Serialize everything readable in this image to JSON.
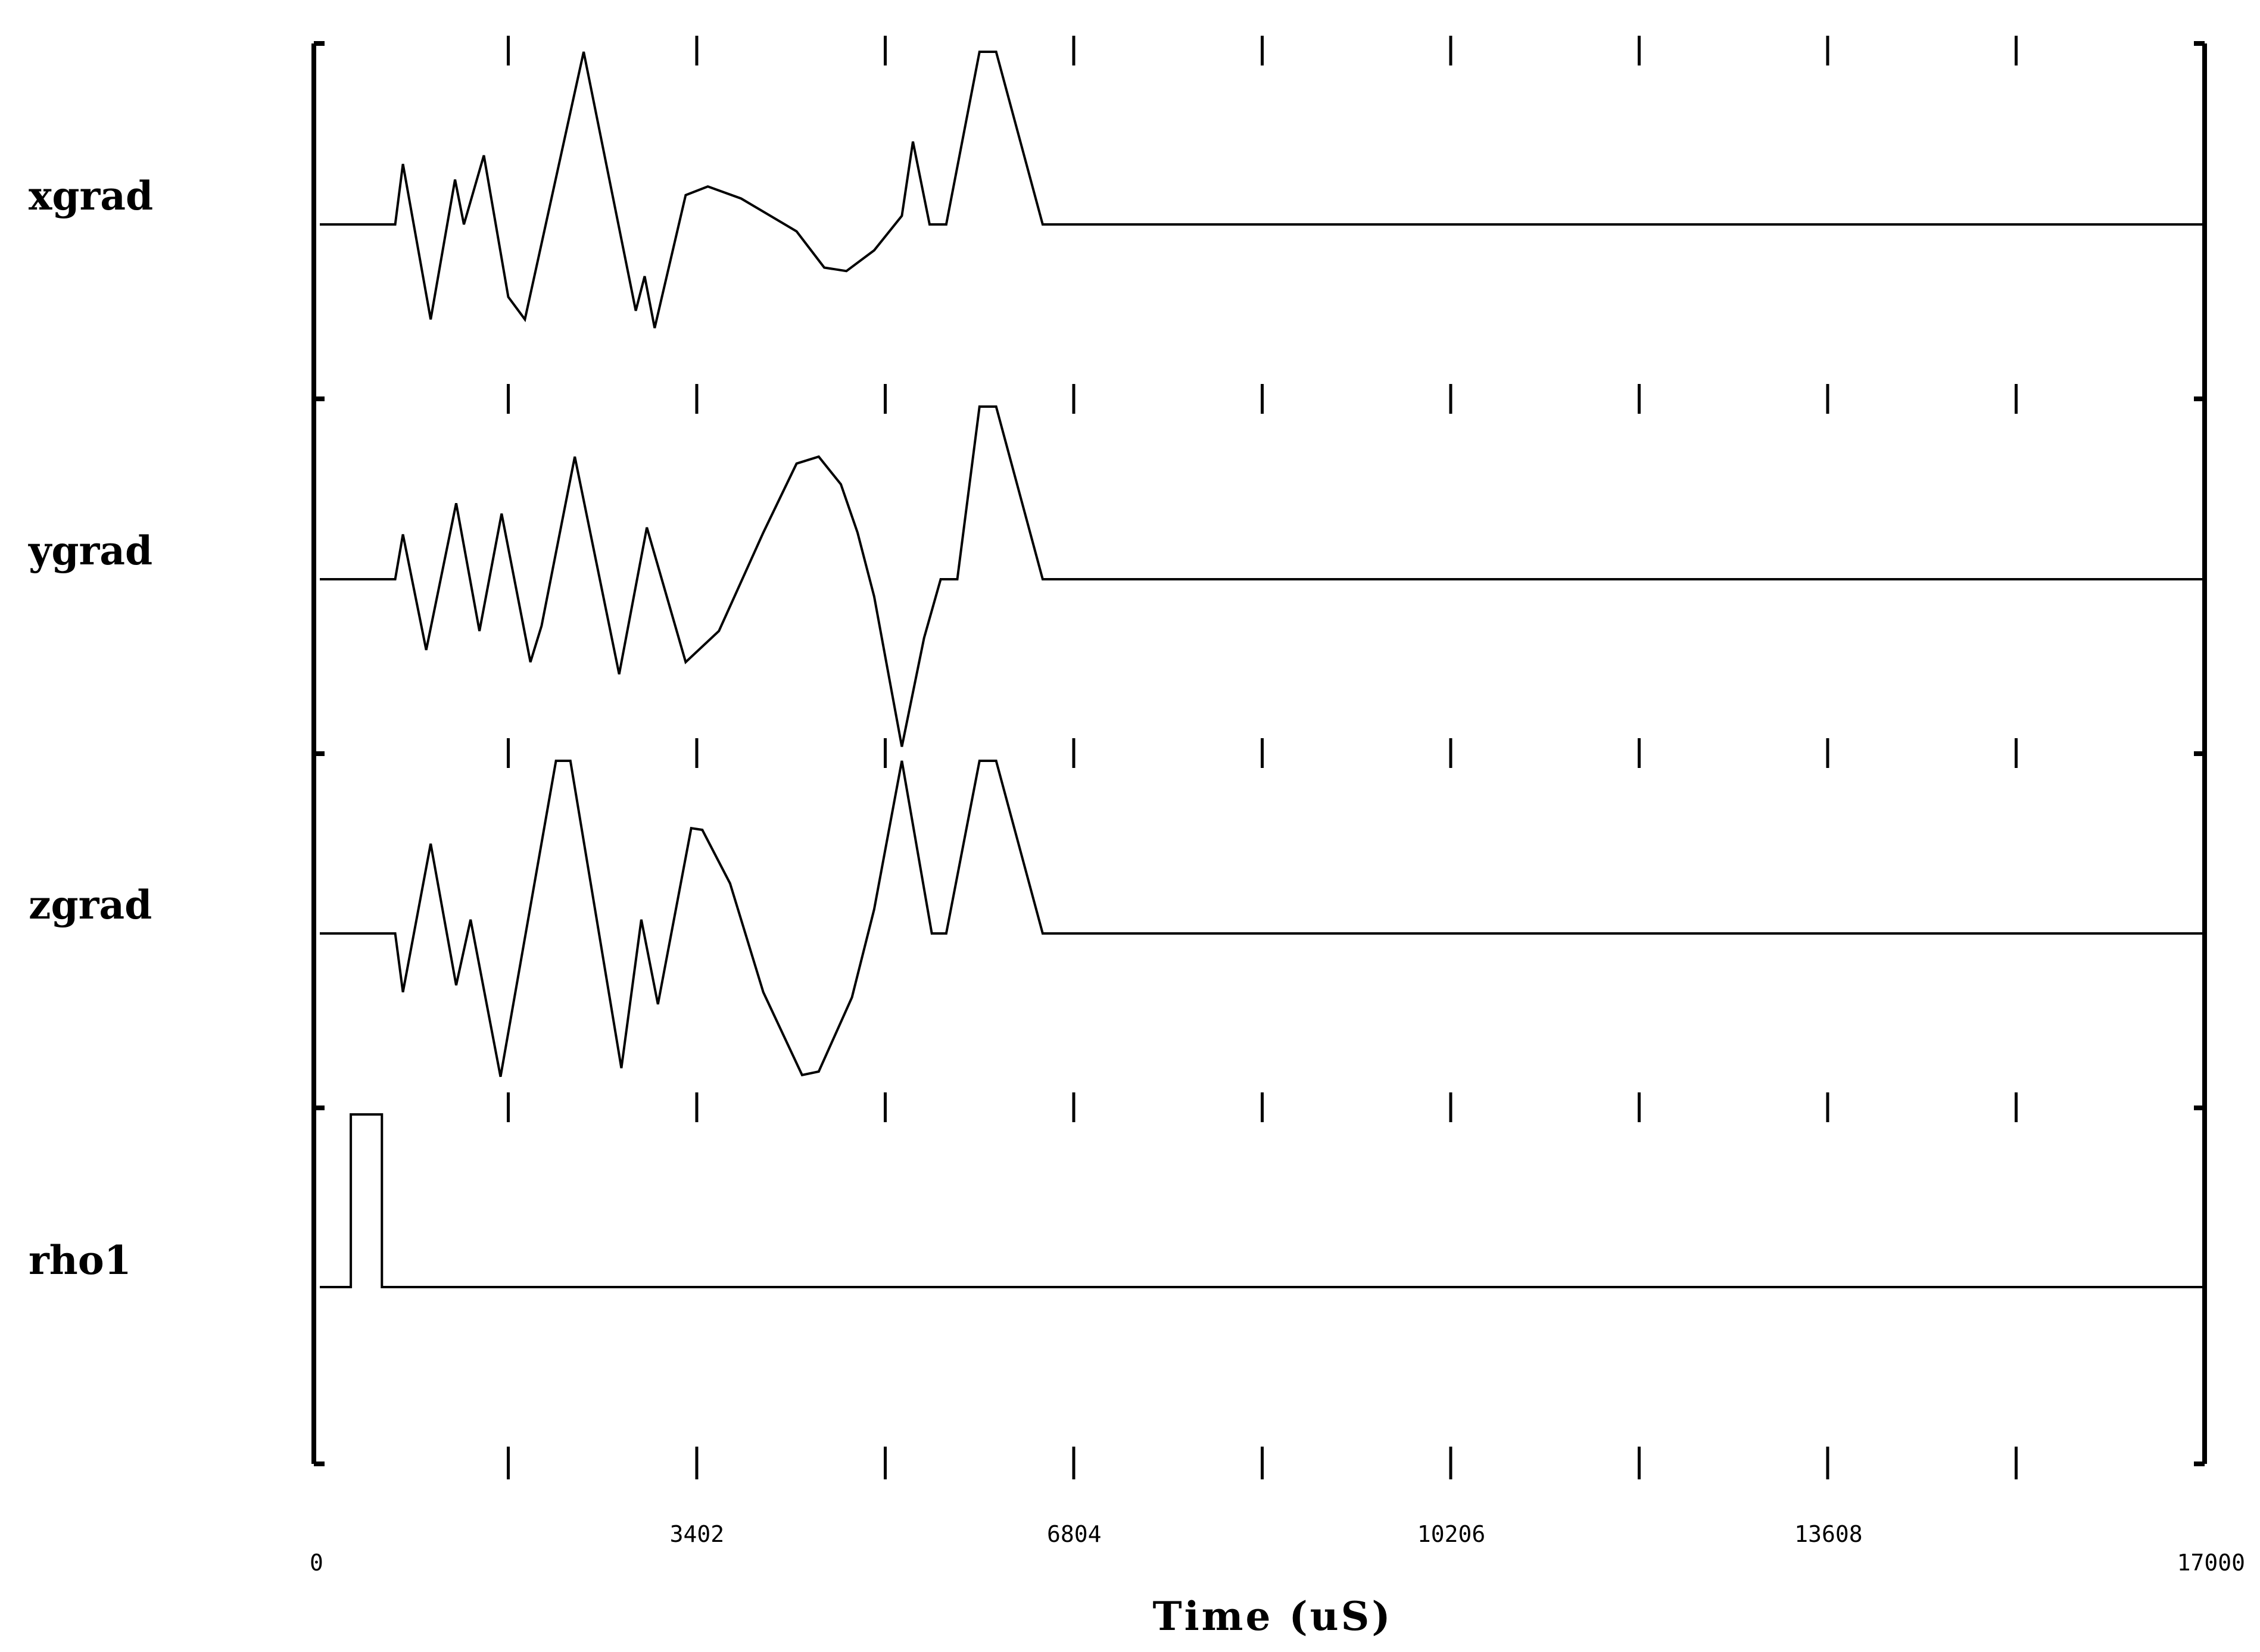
{
  "chart_data": {
    "type": "line",
    "xlabel": "Time (uS)",
    "xlim": [
      0,
      17000
    ],
    "x_tick_labels": [
      "0",
      "3402",
      "6804",
      "10206",
      "13608",
      "17000"
    ],
    "x_tick_values": [
      0,
      3402,
      6804,
      10206,
      13608,
      17000
    ],
    "minor_ticks": [
      1700,
      3400,
      5100,
      6800,
      8500,
      10200,
      11900,
      13600,
      15300
    ],
    "ylim": [
      -1,
      1
    ],
    "series": [
      {
        "name": "xgrad",
        "points": [
          [
            0,
            0
          ],
          [
            680,
            0
          ],
          [
            750,
            0.35
          ],
          [
            1000,
            -0.55
          ],
          [
            1220,
            0.26
          ],
          [
            1300,
            0
          ],
          [
            1480,
            0.4
          ],
          [
            1700,
            -0.42
          ],
          [
            1850,
            -0.55
          ],
          [
            2380,
            1
          ],
          [
            2850,
            -0.5
          ],
          [
            2930,
            -0.3
          ],
          [
            3020,
            -0.6
          ],
          [
            3300,
            0.17
          ],
          [
            3500,
            0.22
          ],
          [
            3800,
            0.15
          ],
          [
            4300,
            -0.04
          ],
          [
            4550,
            -0.25
          ],
          [
            4750,
            -0.27
          ],
          [
            5000,
            -0.15
          ],
          [
            5250,
            0.05
          ],
          [
            5350,
            0.48
          ],
          [
            5500,
            0
          ],
          [
            5650,
            0
          ],
          [
            5950,
            1
          ],
          [
            6100,
            1
          ],
          [
            6520,
            0
          ],
          [
            17000,
            0
          ]
        ]
      },
      {
        "name": "ygrad",
        "points": [
          [
            0,
            0
          ],
          [
            680,
            0
          ],
          [
            750,
            0.26
          ],
          [
            960,
            -0.41
          ],
          [
            1230,
            0.44
          ],
          [
            1440,
            -0.3
          ],
          [
            1640,
            0.38
          ],
          [
            1900,
            -0.48
          ],
          [
            2000,
            -0.27
          ],
          [
            2300,
            0.71
          ],
          [
            2700,
            -0.55
          ],
          [
            2950,
            0.3
          ],
          [
            3300,
            -0.48
          ],
          [
            3600,
            -0.3
          ],
          [
            4000,
            0.27
          ],
          [
            4300,
            0.67
          ],
          [
            4500,
            0.71
          ],
          [
            4700,
            0.55
          ],
          [
            4850,
            0.27
          ],
          [
            5000,
            -0.1
          ],
          [
            5250,
            -0.97
          ],
          [
            5450,
            -0.34
          ],
          [
            5600,
            0
          ],
          [
            5750,
            0
          ],
          [
            5950,
            1
          ],
          [
            6100,
            1
          ],
          [
            6520,
            0
          ],
          [
            17000,
            0
          ]
        ]
      },
      {
        "name": "zgrad",
        "points": [
          [
            0,
            0
          ],
          [
            680,
            0
          ],
          [
            750,
            -0.34
          ],
          [
            1000,
            0.52
          ],
          [
            1230,
            -0.3
          ],
          [
            1360,
            0.08
          ],
          [
            1630,
            -0.83
          ],
          [
            2130,
            1
          ],
          [
            2260,
            1
          ],
          [
            2720,
            -0.78
          ],
          [
            2900,
            0.08
          ],
          [
            3050,
            -0.41
          ],
          [
            3350,
            0.61
          ],
          [
            3450,
            0.6
          ],
          [
            3700,
            0.29
          ],
          [
            4000,
            -0.34
          ],
          [
            4350,
            -0.82
          ],
          [
            4500,
            -0.8
          ],
          [
            4800,
            -0.37
          ],
          [
            5000,
            0.14
          ],
          [
            5250,
            1
          ],
          [
            5520,
            0
          ],
          [
            5650,
            0
          ],
          [
            5950,
            1
          ],
          [
            6100,
            1
          ],
          [
            6520,
            0
          ],
          [
            17000,
            0
          ]
        ]
      },
      {
        "name": "rho1",
        "points": [
          [
            0,
            0
          ],
          [
            280,
            0
          ],
          [
            280,
            1
          ],
          [
            560,
            1
          ],
          [
            560,
            0
          ],
          [
            17000,
            0
          ]
        ]
      }
    ]
  }
}
